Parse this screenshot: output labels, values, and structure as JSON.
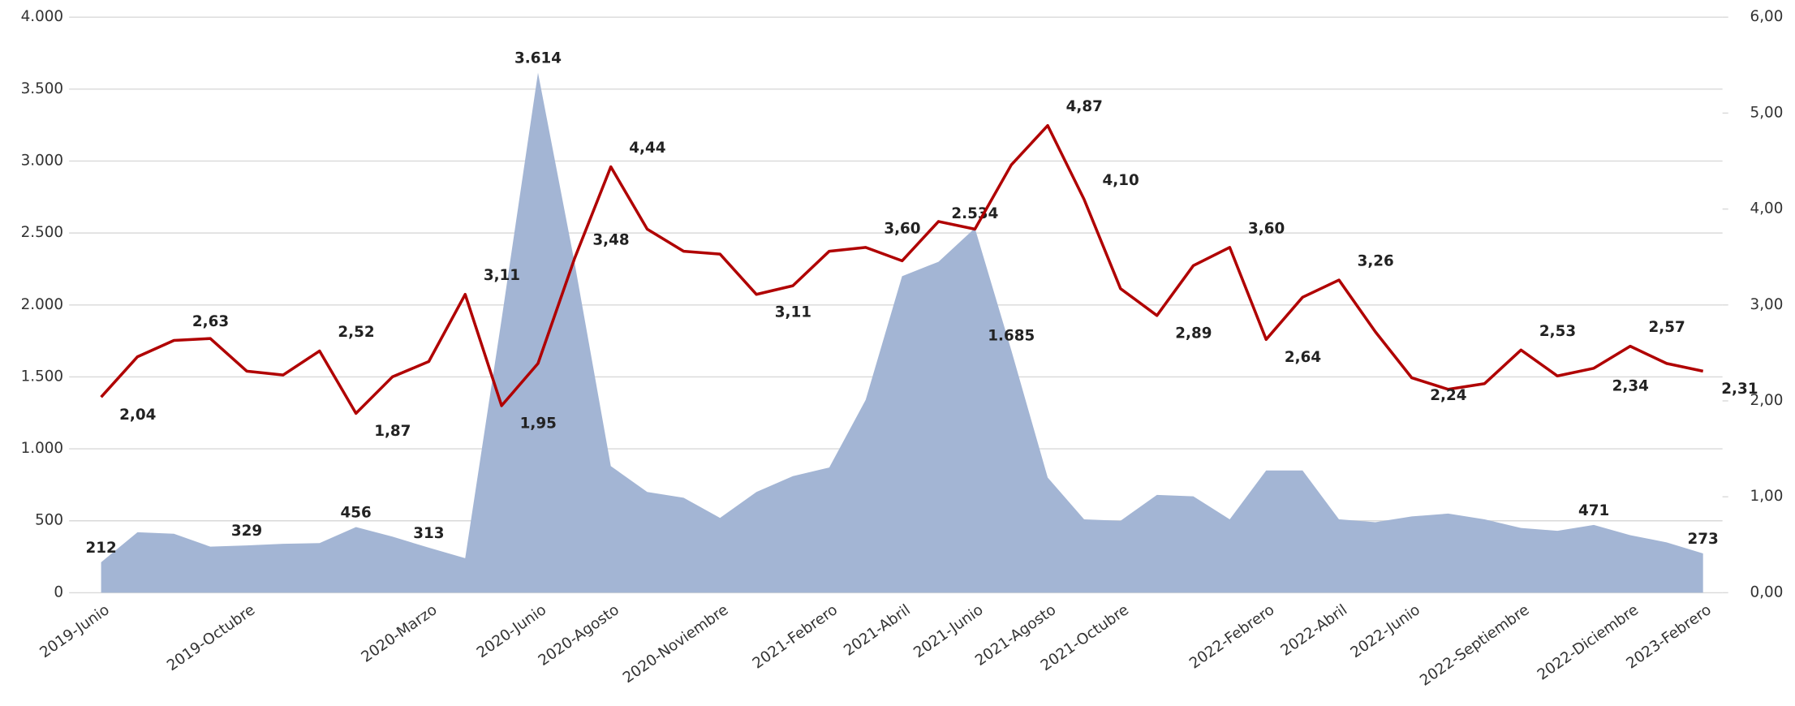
{
  "chart_data": {
    "type": "area-line",
    "categories": [
      "2019-Junio",
      null,
      null,
      null,
      "2019-Octubre",
      null,
      null,
      null,
      null,
      "2020-Marzo",
      null,
      null,
      "2020-Junio",
      null,
      "2020-Agosto",
      null,
      null,
      "2020-Noviembre",
      null,
      null,
      "2021-Febrero",
      null,
      "2021-Abril",
      null,
      "2021-Junio",
      null,
      "2021-Agosto",
      null,
      "2021-Octubre",
      null,
      null,
      null,
      "2022-Febrero",
      null,
      "2022-Abril",
      null,
      "2022-Junio",
      null,
      null,
      "2022-Septiembre",
      null,
      null,
      "2022-Diciembre",
      null,
      "2023-Febrero"
    ],
    "series": [
      {
        "type": "area",
        "color": "#a3b5d4",
        "values": [
          212,
          420,
          410,
          320,
          329,
          340,
          345,
          456,
          390,
          313,
          240,
          1900,
          3614,
          2300,
          880,
          700,
          660,
          520,
          700,
          810,
          870,
          1340,
          2200,
          2300,
          2534,
          1685,
          800,
          510,
          500,
          680,
          670,
          510,
          850,
          850,
          510,
          490,
          530,
          550,
          510,
          450,
          430,
          471,
          400,
          350,
          273
        ],
        "value_labels": [
          "212",
          null,
          null,
          null,
          "329",
          null,
          null,
          "456",
          null,
          "313",
          null,
          null,
          "3.614",
          null,
          null,
          null,
          null,
          null,
          null,
          null,
          null,
          null,
          null,
          null,
          "2.534",
          "1.685",
          null,
          null,
          null,
          null,
          null,
          null,
          null,
          null,
          null,
          null,
          null,
          null,
          null,
          null,
          null,
          "471",
          null,
          null,
          "273"
        ]
      },
      {
        "type": "line",
        "color": "#b00000",
        "axis": "y2",
        "values": [
          2.04,
          2.46,
          2.63,
          2.65,
          2.31,
          2.27,
          2.52,
          1.87,
          2.25,
          2.41,
          3.11,
          1.95,
          2.39,
          3.48,
          4.44,
          3.79,
          3.56,
          3.53,
          3.11,
          3.2,
          3.56,
          3.6,
          3.46,
          3.87,
          3.79,
          4.46,
          4.87,
          4.1,
          3.17,
          2.89,
          3.41,
          3.6,
          2.64,
          3.08,
          3.26,
          2.72,
          2.24,
          2.12,
          2.18,
          2.53,
          2.26,
          2.34,
          2.57,
          2.39,
          2.31
        ],
        "value_labels": [
          "2,04",
          null,
          "2,63",
          null,
          null,
          null,
          "2,52",
          "1,87",
          null,
          null,
          "3,11",
          "1,95",
          null,
          "3,48",
          "4,44",
          null,
          null,
          null,
          "3,11",
          null,
          null,
          "3,60",
          null,
          null,
          null,
          null,
          "4,87",
          "4,10",
          null,
          "2,89",
          null,
          "3,60",
          "2,64",
          null,
          "3,26",
          null,
          "2,24",
          null,
          null,
          "2,53",
          null,
          "2,34",
          "2,57",
          null,
          "2,31"
        ]
      }
    ],
    "ylim": [
      0,
      4000
    ],
    "yticks": [
      0,
      500,
      {
        "value": 1000,
        "label": "1.000"
      },
      {
        "value": 1500,
        "label": "1.500"
      },
      {
        "value": 2000,
        "label": "2.000"
      },
      {
        "value": 2500,
        "label": "2.500"
      },
      {
        "value": 3000,
        "label": "3.000"
      },
      {
        "value": 3500,
        "label": "3.500"
      },
      {
        "value": 4000,
        "label": "4.000"
      }
    ],
    "y2lim": [
      0,
      6
    ],
    "y2ticks": [
      {
        "value": 0,
        "label": "0,00"
      },
      {
        "value": 1,
        "label": "1,00"
      },
      {
        "value": 2,
        "label": "2,00"
      },
      {
        "value": 3,
        "label": "3,00"
      },
      {
        "value": 4,
        "label": "4,00"
      },
      {
        "value": 5,
        "label": "5,00"
      },
      {
        "value": 6,
        "label": "6,00"
      }
    ],
    "grid": true
  }
}
